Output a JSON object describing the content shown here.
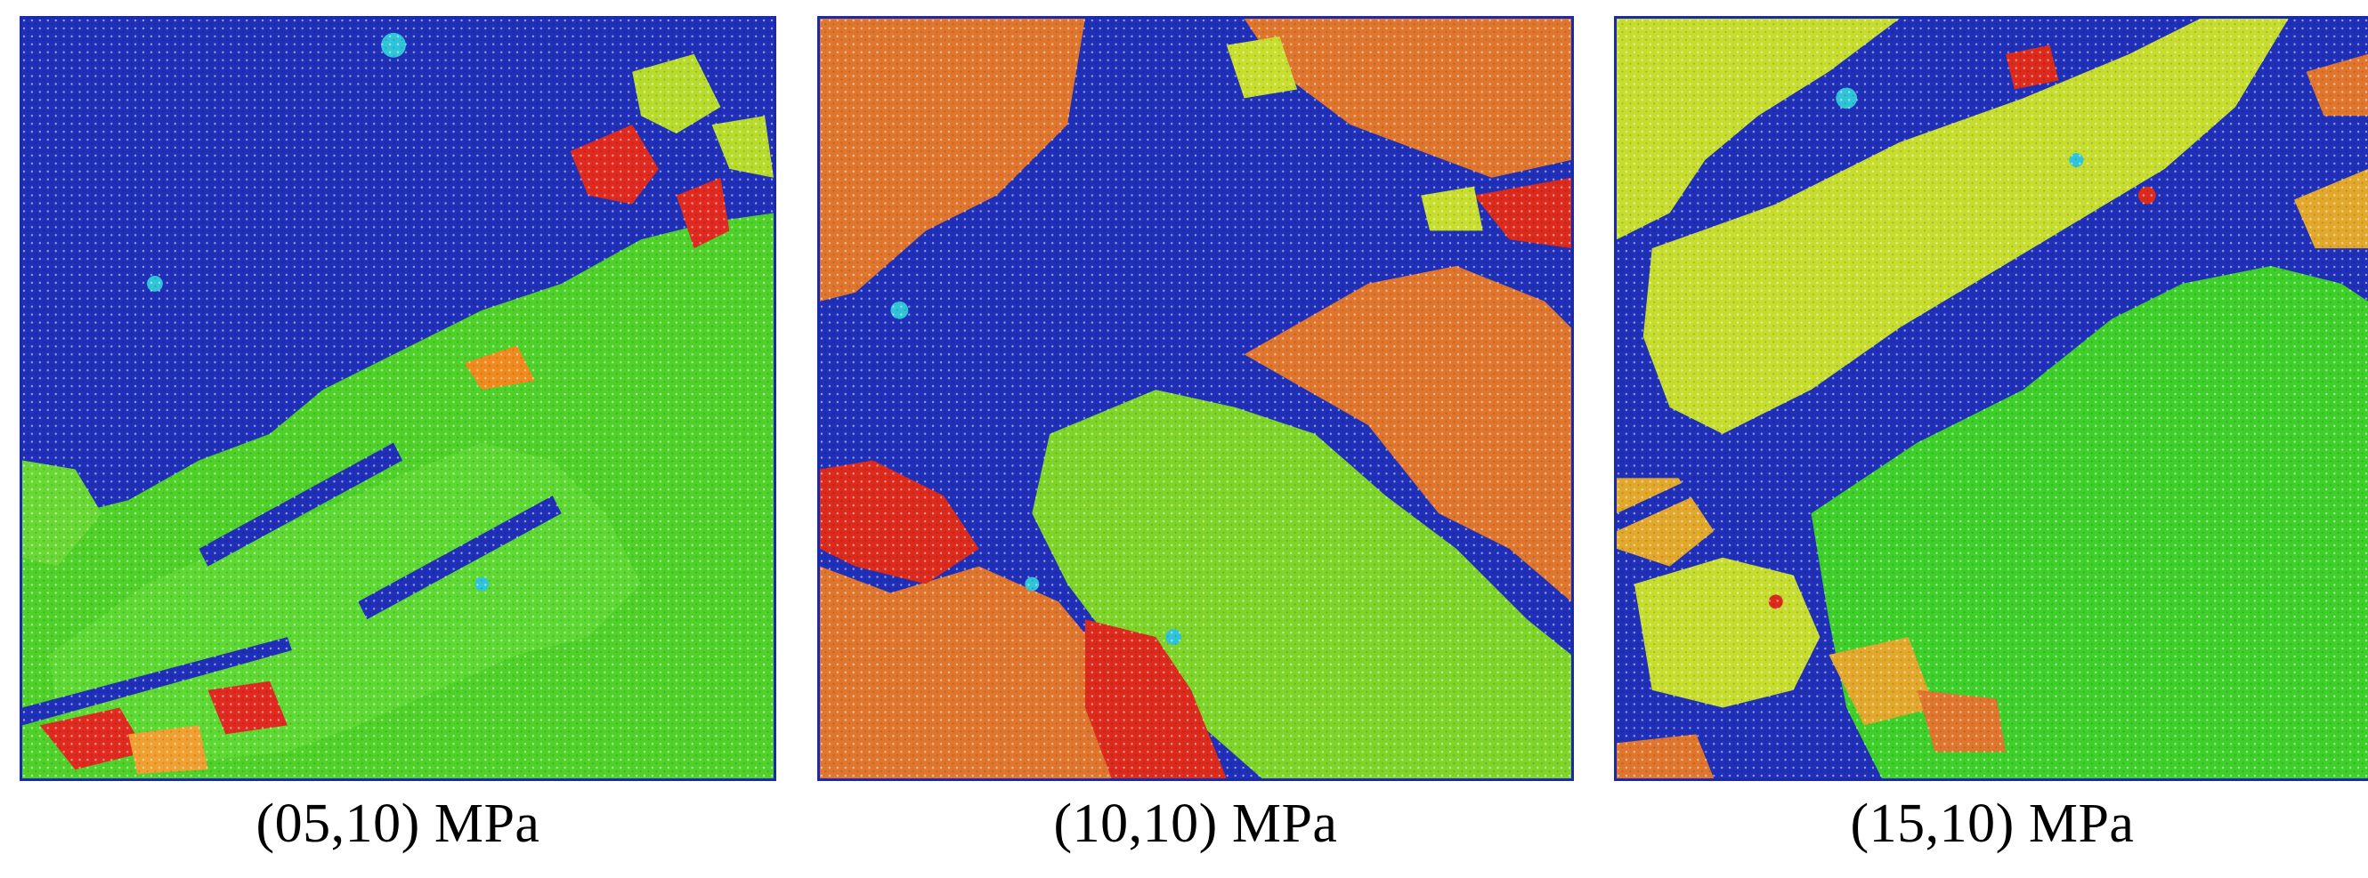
{
  "figure": {
    "panels": [
      {
        "caption": "(05,10) MPa",
        "dominant_colors": [
          "#1f2fb8",
          "#4fd12a",
          "#7fdc2b",
          "#e12a1f",
          "#f08a1e",
          "#2fc4d8"
        ]
      },
      {
        "caption": "(10,10) MPa",
        "dominant_colors": [
          "#1f2fb8",
          "#e0762e",
          "#7fd42a",
          "#dc2a1c",
          "#c8de2f",
          "#2fc4d8"
        ]
      },
      {
        "caption": "(15,10) MPa",
        "dominant_colors": [
          "#1f2fb8",
          "#c6dc2e",
          "#3ecf2a",
          "#e2a82c",
          "#e0762e",
          "#dc2a1c"
        ]
      }
    ]
  }
}
